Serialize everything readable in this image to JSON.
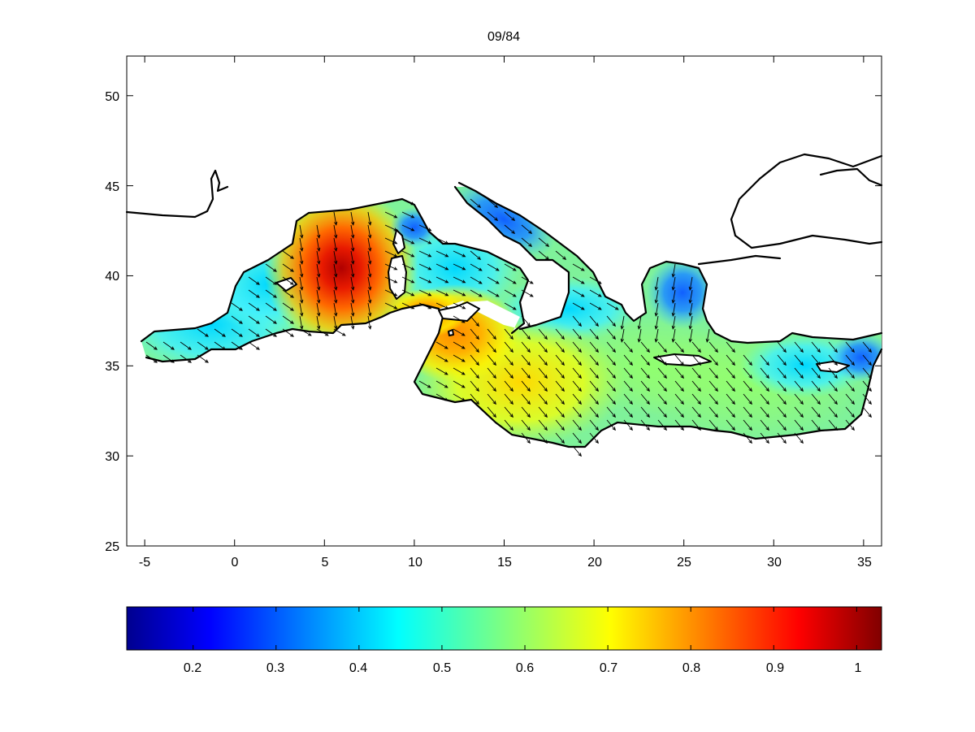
{
  "figure": {
    "title": "09/84"
  },
  "chart_data": {
    "type": "heatmap",
    "title": "09/84",
    "xlabel": "",
    "ylabel": "",
    "xlim": [
      -6,
      36
    ],
    "ylim": [
      25,
      52.2
    ],
    "x_ticks": [
      "-5",
      "0",
      "5",
      "10",
      "15",
      "20",
      "25",
      "30",
      "35"
    ],
    "y_ticks": [
      "25",
      "30",
      "35",
      "40",
      "45",
      "50"
    ],
    "colorbar": {
      "colormap": "jet",
      "range": [
        0.12,
        1.03
      ],
      "ticks": [
        "0.2",
        "0.3",
        "0.4",
        "0.5",
        "0.6",
        "0.7",
        "0.8",
        "0.9",
        "1"
      ],
      "orientation": "horizontal",
      "placement": "bottom"
    },
    "field_description": "Mediterranean Sea scalar field with overlaid vector arrows",
    "maxima": [
      {
        "lon": 6,
        "lat": 41,
        "value": 1.0
      },
      {
        "lon": 11.5,
        "lat": 38,
        "value": 0.83
      },
      {
        "lon": 13,
        "lat": 36,
        "value": 0.72
      }
    ],
    "minima": [
      {
        "lon": 15,
        "lat": 43.5,
        "value": 0.26
      },
      {
        "lon": 25,
        "lat": 39.5,
        "value": 0.3
      },
      {
        "lon": 35,
        "lat": 35,
        "value": 0.35
      }
    ]
  }
}
